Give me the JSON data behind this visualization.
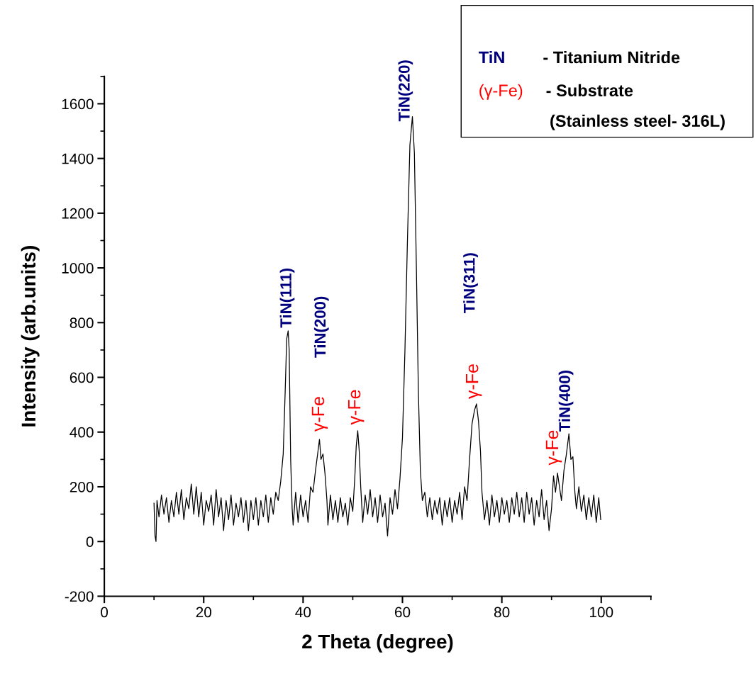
{
  "chart_data": {
    "type": "line",
    "xlabel": "2 Theta (degree)",
    "ylabel": "Intensity (arb.units)",
    "xlim": [
      0,
      110
    ],
    "xticks": [
      0,
      20,
      40,
      60,
      80,
      100
    ],
    "ylim": [
      -200,
      1700
    ],
    "yticks": [
      -200,
      0,
      200,
      400,
      600,
      800,
      1000,
      1200,
      1400,
      1600
    ],
    "grid": false,
    "legend": false,
    "marker": "none",
    "line_style": "solid",
    "series": [
      {
        "color": "#000000",
        "x": [
          10.0,
          10.2,
          10.4,
          10.6,
          11,
          11.5,
          12,
          12.5,
          13,
          13.5,
          14,
          14.5,
          15,
          15.5,
          16,
          16.5,
          17,
          17.5,
          18,
          18.5,
          19,
          19.5,
          20,
          20.5,
          21,
          21.5,
          22,
          22.5,
          23,
          23.5,
          24,
          24.5,
          25,
          25.5,
          26,
          26.5,
          27,
          27.5,
          28,
          28.5,
          29,
          29.5,
          30,
          30.5,
          31,
          31.5,
          32,
          32.5,
          33,
          33.5,
          34,
          34.5,
          35,
          35.5,
          36,
          36.4,
          36.7,
          37,
          37.2,
          37.5,
          37.8,
          38,
          38.5,
          39,
          39.5,
          40,
          40.5,
          41,
          41.5,
          42,
          42.5,
          43,
          43.3,
          43.6,
          44,
          44.4,
          44.8,
          45,
          45.5,
          46,
          46.5,
          47,
          47.5,
          48,
          48.5,
          49,
          49.5,
          50,
          50.4,
          50.7,
          51,
          51.3,
          51.6,
          52,
          52.5,
          53,
          53.5,
          54,
          54.5,
          55,
          55.5,
          56,
          56.5,
          57,
          57.5,
          58,
          58.5,
          59,
          59.5,
          60,
          60.5,
          61,
          61.5,
          62,
          62.4,
          62.8,
          63.2,
          63.6,
          64,
          64.5,
          65,
          65.5,
          66,
          66.5,
          67,
          67.5,
          68,
          68.5,
          69,
          69.5,
          70,
          70.5,
          71,
          71.5,
          72,
          72.5,
          73,
          73.5,
          74,
          74.5,
          74.9,
          75.3,
          75.7,
          76,
          76.5,
          77,
          77.5,
          78,
          78.5,
          79,
          79.5,
          80,
          80.5,
          81,
          81.5,
          82,
          82.5,
          83,
          83.5,
          84,
          84.5,
          85,
          85.5,
          86,
          86.5,
          87,
          87.5,
          88,
          88.5,
          89,
          89.5,
          90,
          90.4,
          90.8,
          91.2,
          91.6,
          92,
          92.5,
          93,
          93.5,
          93.9,
          94.3,
          94.7,
          95,
          95.5,
          96,
          96.5,
          97,
          97.5,
          98,
          98.5,
          99,
          99.5,
          99.9
        ],
        "values": [
          140,
          20,
          0,
          150,
          90,
          170,
          100,
          160,
          70,
          150,
          90,
          180,
          100,
          190,
          80,
          160,
          120,
          210,
          100,
          200,
          90,
          180,
          60,
          150,
          110,
          170,
          60,
          190,
          90,
          160,
          40,
          150,
          80,
          170,
          60,
          140,
          90,
          160,
          70,
          150,
          40,
          150,
          80,
          160,
          60,
          150,
          90,
          170,
          70,
          160,
          100,
          180,
          150,
          220,
          320,
          550,
          740,
          770,
          700,
          300,
          120,
          60,
          180,
          70,
          170,
          90,
          150,
          70,
          200,
          180,
          260,
          330,
          373,
          300,
          320,
          250,
          150,
          60,
          170,
          80,
          150,
          70,
          160,
          90,
          140,
          60,
          160,
          110,
          230,
          350,
          405,
          330,
          200,
          70,
          170,
          100,
          190,
          90,
          160,
          70,
          170,
          90,
          140,
          20,
          160,
          100,
          190,
          120,
          230,
          380,
          700,
          1100,
          1450,
          1553,
          1420,
          1000,
          550,
          260,
          150,
          180,
          90,
          160,
          80,
          150,
          100,
          160,
          60,
          150,
          90,
          160,
          70,
          150,
          100,
          180,
          80,
          200,
          150,
          300,
          430,
          480,
          503,
          440,
          330,
          180,
          80,
          150,
          60,
          170,
          90,
          150,
          70,
          160,
          100,
          150,
          70,
          160,
          100,
          180,
          90,
          160,
          70,
          180,
          100,
          160,
          60,
          150,
          90,
          190,
          80,
          150,
          40,
          120,
          240,
          180,
          250,
          200,
          150,
          260,
          320,
          394,
          300,
          310,
          180,
          120,
          200,
          110,
          170,
          80,
          160,
          90,
          170,
          70,
          160,
          80
        ]
      }
    ],
    "annotations": [
      "TiN",
      "- Titanium Nitride",
      "(γ-Fe)",
      "- Substrate",
      "(Stainless steel- 316L)",
      {
        "text": "TiN(111)",
        "x": 37,
        "y": 770
      },
      {
        "text": "γ-Fe",
        "x": 43.3,
        "y": 373
      },
      "TiN(200)",
      {
        "text": "γ-Fe",
        "x": 51,
        "y": 405
      },
      {
        "text": "TiN(220)",
        "x": 62,
        "y": 1553
      },
      {
        "text": "γ-Fe",
        "x": 74.9,
        "y": 503
      },
      "TiN(311)",
      {
        "text": "γ-Fe",
        "x": 91.2,
        "y": 250
      },
      {
        "text": "TiN(400)",
        "x": 93.5,
        "y": 394
      }
    ]
  }
}
